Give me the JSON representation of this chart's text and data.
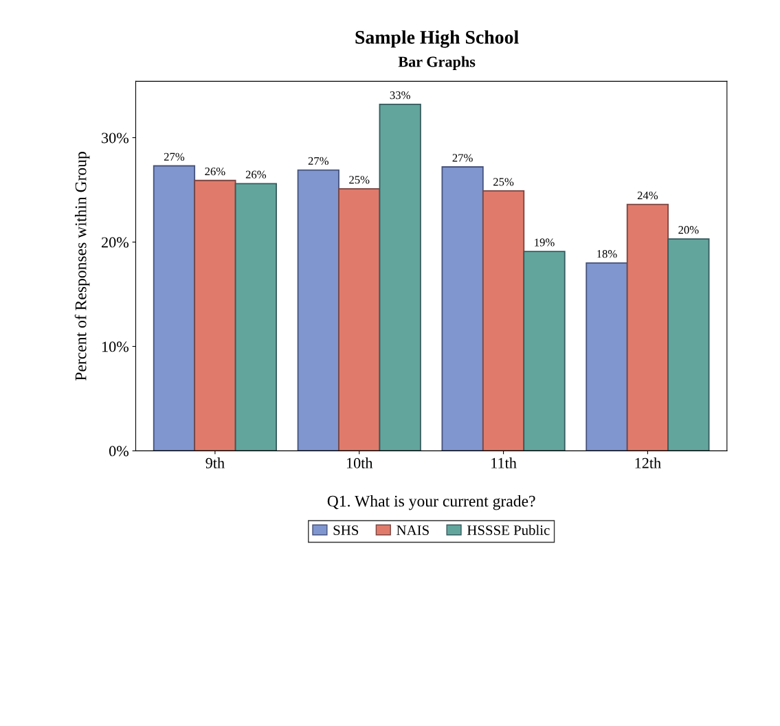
{
  "chart_data": {
    "type": "bar",
    "title": "Sample High School",
    "subtitle": "Bar Graphs",
    "xlabel": "Q1. What is your current grade?",
    "ylabel": "Percent of Responses within Group",
    "categories": [
      "9th",
      "10th",
      "11th",
      "12th"
    ],
    "series": [
      {
        "name": "SHS",
        "color": "#7f96cf",
        "values": [
          27.3,
          26.9,
          27.2,
          18.0
        ],
        "value_labels": [
          "27%",
          "27%",
          "27%",
          "18%"
        ]
      },
      {
        "name": "NAIS",
        "color": "#e07b6b",
        "values": [
          25.9,
          25.1,
          24.9,
          23.6
        ],
        "value_labels": [
          "26%",
          "25%",
          "25%",
          "24%"
        ]
      },
      {
        "name": "HSSSE Public",
        "color": "#62a59d",
        "values": [
          25.6,
          33.2,
          19.1,
          20.3
        ],
        "value_labels": [
          "26%",
          "33%",
          "19%",
          "20%"
        ]
      }
    ],
    "ylim": [
      0,
      35.4
    ],
    "yticks": [
      {
        "value": 0,
        "label": "0%"
      },
      {
        "value": 10,
        "label": "10%"
      },
      {
        "value": 20,
        "label": "20%"
      },
      {
        "value": 30,
        "label": "30%"
      }
    ],
    "grid": false,
    "legend": "bottom"
  }
}
